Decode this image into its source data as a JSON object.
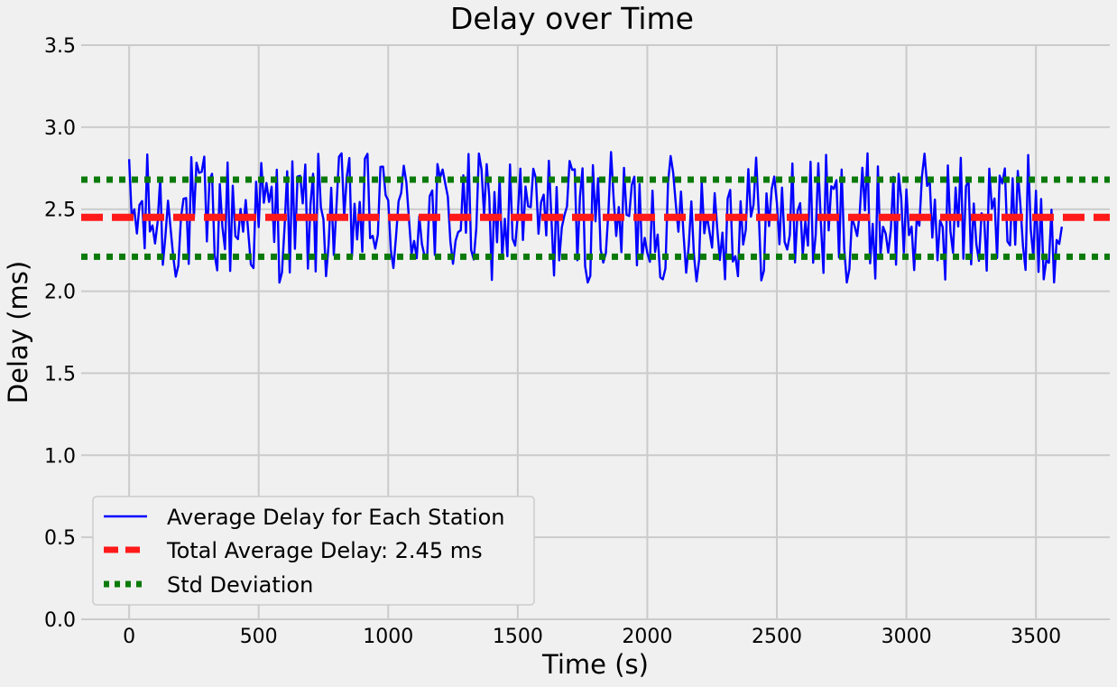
{
  "chart_data": {
    "type": "line",
    "title": "Delay over Time",
    "xlabel": "Time (s)",
    "ylabel": "Delay (ms)",
    "xlim": [
      -185,
      3785
    ],
    "ylim": [
      0,
      3.5
    ],
    "x_ticks": [
      "0",
      "500",
      "1000",
      "1500",
      "2000",
      "2500",
      "3000",
      "3500"
    ],
    "y_ticks": [
      "0.0",
      "0.5",
      "1.0",
      "1.5",
      "2.0",
      "2.5",
      "3.0",
      "3.5"
    ],
    "grid": true,
    "legend_position": "lower-left",
    "series": [
      {
        "name": "Average Delay for Each Station",
        "style": "solid",
        "color": "#0000ff",
        "x_range": [
          0,
          3600
        ],
        "points_count": 360,
        "y_min": 2.05,
        "y_max": 2.85,
        "y_mean": 2.45
      },
      {
        "name": "Total Average Delay: 2.45 ms",
        "style": "dashed",
        "color": "#ff1a1a",
        "y": 2.45
      },
      {
        "name": "Std Deviation",
        "style": "dotted",
        "color": "#0a7a0a",
        "y_values": [
          2.68,
          2.21
        ]
      }
    ]
  }
}
